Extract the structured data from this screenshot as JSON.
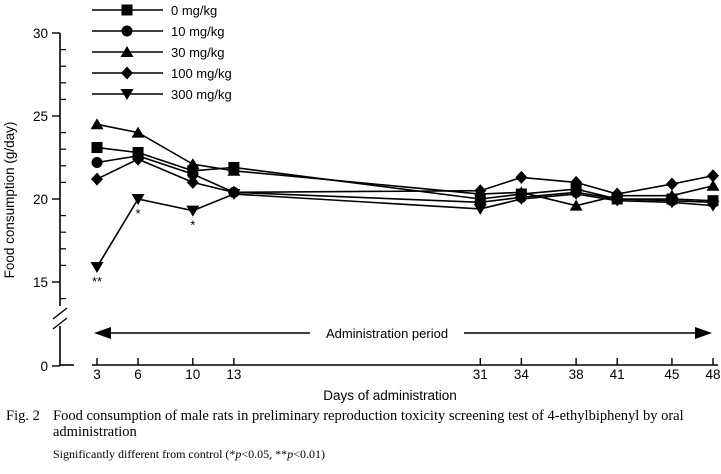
{
  "chart_data": {
    "type": "line",
    "xlabel": "Days of administration",
    "ylabel": "Food consumption (g/day)",
    "x": [
      3,
      6,
      10,
      13,
      31,
      34,
      38,
      41,
      45,
      48
    ],
    "yticks": [
      30,
      25,
      20,
      15
    ],
    "ytick_zero": "0",
    "y_minor_ticks": [
      29,
      28,
      27,
      26,
      24,
      23,
      22,
      21,
      19,
      18,
      17,
      16,
      14
    ],
    "ylim": [
      0,
      30
    ],
    "axis_break": true,
    "grid": false,
    "legend_position": "top-left",
    "color": "#000000",
    "series": [
      {
        "name": "0 mg/kg",
        "marker": "square",
        "values": [
          23.1,
          22.8,
          21.7,
          21.9,
          20.0,
          20.3,
          20.6,
          20.0,
          20.0,
          19.9
        ]
      },
      {
        "name": "10 mg/kg",
        "marker": "circle",
        "values": [
          22.2,
          22.6,
          21.5,
          20.4,
          19.8,
          20.1,
          20.4,
          20.0,
          19.9,
          19.8
        ]
      },
      {
        "name": "30 mg/kg",
        "marker": "triangle-up",
        "values": [
          24.5,
          24.0,
          22.1,
          21.7,
          20.3,
          20.4,
          19.6,
          20.2,
          20.2,
          20.8
        ]
      },
      {
        "name": "100 mg/kg",
        "marker": "diamond",
        "values": [
          21.2,
          22.4,
          21.0,
          20.4,
          20.5,
          21.3,
          21.0,
          20.3,
          20.9,
          21.4
        ]
      },
      {
        "name": "300 mg/kg",
        "marker": "triangle-down",
        "values": [
          15.9,
          20.0,
          19.3,
          20.3,
          19.4,
          20.0,
          20.3,
          19.9,
          19.8,
          19.6
        ]
      }
    ],
    "annotations": [
      {
        "x": 3,
        "y": 15.9,
        "text": "**"
      },
      {
        "x": 6,
        "y": 20.0,
        "text": "*"
      },
      {
        "x": 10,
        "y": 19.3,
        "text": "*"
      }
    ],
    "period_arrow_label": "Administration period"
  },
  "caption": {
    "fig_label": "Fig. 2",
    "line1": "Food consumption of male rats in preliminary reproduction toxicity screening test of 4-ethylbiphenyl by oral",
    "line2": "administration",
    "note": [
      "Significantly different from control (*",
      "p",
      "<0.05, **",
      "p",
      "<0.01)"
    ]
  }
}
